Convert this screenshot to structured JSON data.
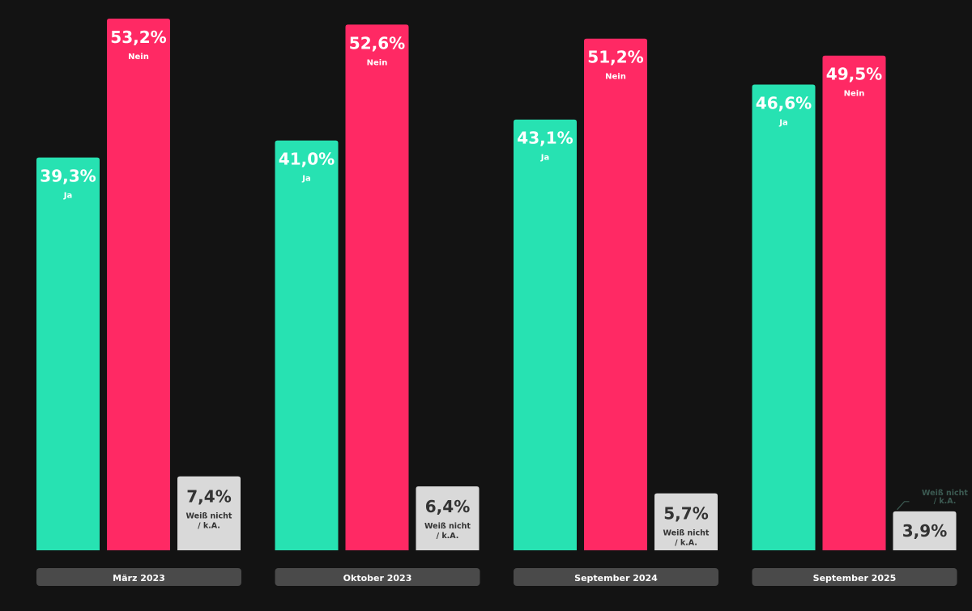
{
  "chart_data": {
    "type": "bar",
    "categories": [
      "März 2023",
      "Oktober 2023",
      "September 2024",
      "September 2025"
    ],
    "series": [
      {
        "name": "Ja",
        "values": [
          39.3,
          41.0,
          43.1,
          46.6
        ],
        "labels": [
          "39,3%",
          "41,0%",
          "43,1%",
          "46,6%"
        ]
      },
      {
        "name": "Nein",
        "values": [
          53.2,
          52.6,
          51.2,
          49.5
        ],
        "labels": [
          "53,2%",
          "52,6%",
          "51,2%",
          "49,5%"
        ]
      },
      {
        "name": "Weiß nicht / k.A.",
        "values": [
          7.4,
          6.4,
          5.7,
          3.9
        ],
        "labels": [
          "7,4%",
          "6,4%",
          "5,7%",
          "3,9%"
        ]
      }
    ],
    "series_label_lines": [
      [
        "Ja"
      ],
      [
        "Nein"
      ],
      [
        "Weiß nicht",
        "/ k.A."
      ]
    ],
    "ylim": [
      0,
      53.2
    ],
    "grid": false,
    "legend": "none"
  },
  "colors": {
    "background": "#131313",
    "ja": "#27e2b2",
    "nein": "#ff2964",
    "unknown": "#d9d9d9",
    "category_pill": "#4a4a4a",
    "text_light": "#ffffff",
    "text_dark": "#333333",
    "outside_label": "#3c5a52"
  }
}
